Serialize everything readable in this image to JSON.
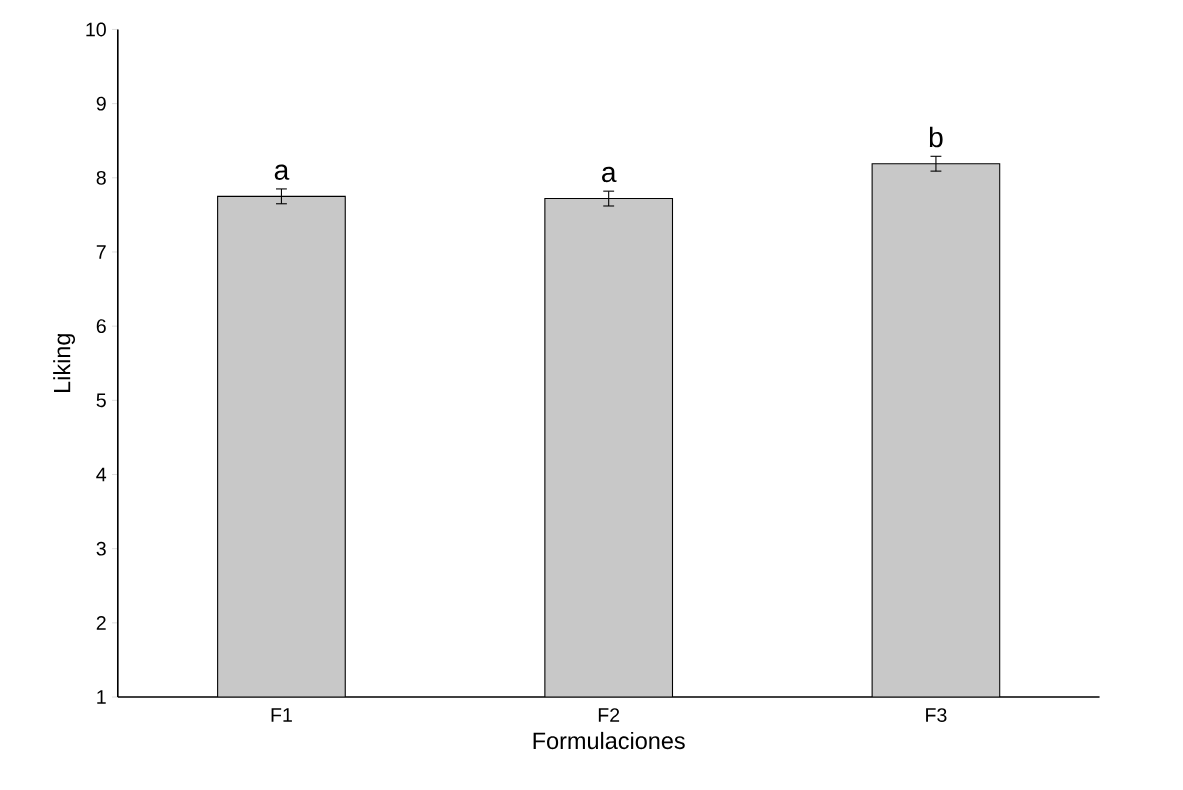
{
  "chart_data": {
    "type": "bar",
    "xlabel": "Formulaciones",
    "ylabel": "Liking",
    "categories": [
      "F1",
      "F2",
      "F3"
    ],
    "values": [
      7.75,
      7.72,
      8.19
    ],
    "errors": [
      0.1,
      0.1,
      0.1
    ],
    "color": "#c8c8c8",
    "ylim": [
      1,
      10
    ],
    "yticks": [
      1,
      2,
      3,
      4,
      5,
      6,
      7,
      8,
      9,
      10
    ],
    "annotations": [
      "a",
      "a",
      "b"
    ]
  }
}
